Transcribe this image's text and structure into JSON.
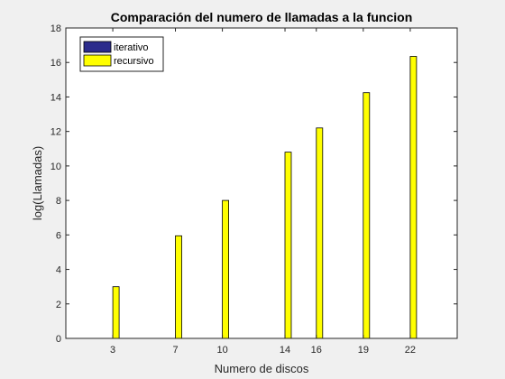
{
  "chart_data": {
    "type": "bar",
    "title": "Comparación del numero de llamadas a la funcion",
    "xlabel": "Numero de discos",
    "ylabel": "log(Llamadas)",
    "x": [
      3,
      7,
      10,
      14,
      16,
      19,
      22
    ],
    "xlim": [
      0,
      25
    ],
    "ylim": [
      0,
      18
    ],
    "yticks": [
      0,
      2,
      4,
      6,
      8,
      10,
      12,
      14,
      16,
      18
    ],
    "grid": false,
    "legend_position": "top-left",
    "series": [
      {
        "name": "iterativo",
        "color": "#2b2b8c",
        "values": [
          0,
          0,
          0,
          0,
          0,
          0,
          0
        ]
      },
      {
        "name": "recursivo",
        "color": "#ffff00",
        "values": [
          3.0,
          5.95,
          8.0,
          10.8,
          12.2,
          14.25,
          16.35
        ]
      }
    ]
  }
}
